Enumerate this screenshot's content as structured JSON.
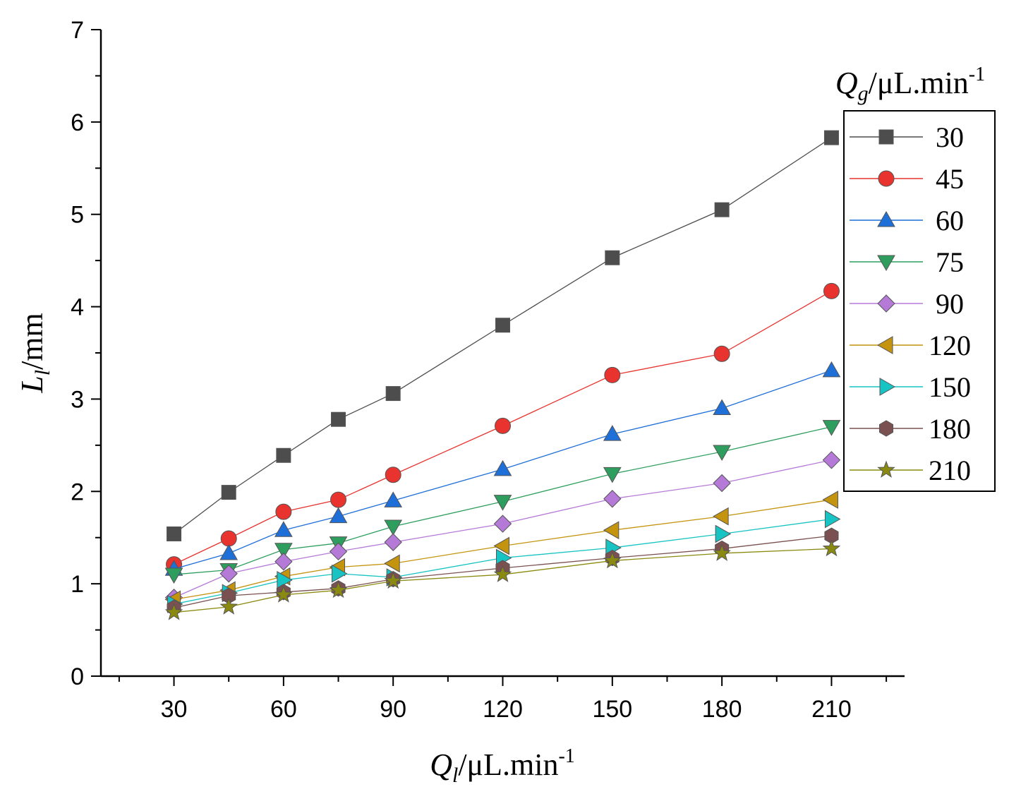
{
  "chart_data": {
    "type": "line",
    "title": "",
    "xlabel": {
      "main": "Q",
      "sub": "l",
      "unit": "/μL.min",
      "sup": "-1"
    },
    "ylabel": {
      "main": "L",
      "sub": "l",
      "unit": "/mm"
    },
    "xlim": [
      10,
      230
    ],
    "ylim": [
      0,
      7
    ],
    "xticks": [
      30,
      60,
      90,
      120,
      150,
      180,
      210
    ],
    "yticks": [
      0,
      1,
      2,
      3,
      4,
      5,
      6,
      7
    ],
    "x": [
      30,
      45,
      60,
      75,
      90,
      120,
      150,
      180,
      210
    ],
    "legend": {
      "title": {
        "main": "Q",
        "sub": "g",
        "unit": "/μL.min",
        "sup": "-1"
      },
      "position": "right"
    },
    "series": [
      {
        "name": "30",
        "color": "#4d4d4d",
        "marker": "square",
        "values": [
          1.54,
          1.99,
          2.39,
          2.78,
          3.06,
          3.8,
          4.53,
          5.05,
          5.83
        ]
      },
      {
        "name": "45",
        "color": "#e8332e",
        "marker": "circle",
        "values": [
          1.21,
          1.49,
          1.78,
          1.91,
          2.18,
          2.71,
          3.26,
          3.49,
          4.17
        ]
      },
      {
        "name": "60",
        "color": "#1f6fd8",
        "marker": "triangle-up",
        "values": [
          1.16,
          1.33,
          1.58,
          1.73,
          1.9,
          2.24,
          2.62,
          2.9,
          3.31
        ]
      },
      {
        "name": "75",
        "color": "#2e9e5e",
        "marker": "triangle-down",
        "values": [
          1.1,
          1.15,
          1.37,
          1.44,
          1.62,
          1.89,
          2.19,
          2.43,
          2.7
        ]
      },
      {
        "name": "90",
        "color": "#b57ad8",
        "marker": "diamond",
        "values": [
          0.85,
          1.11,
          1.24,
          1.35,
          1.45,
          1.65,
          1.92,
          2.09,
          2.34
        ]
      },
      {
        "name": "120",
        "color": "#c4940e",
        "marker": "triangle-left",
        "values": [
          0.83,
          0.93,
          1.08,
          1.18,
          1.22,
          1.41,
          1.58,
          1.73,
          1.91
        ]
      },
      {
        "name": "150",
        "color": "#17c3c3",
        "marker": "triangle-right",
        "values": [
          0.78,
          0.9,
          1.04,
          1.11,
          1.07,
          1.28,
          1.39,
          1.54,
          1.7
        ]
      },
      {
        "name": "180",
        "color": "#7a5150",
        "marker": "hexagon",
        "values": [
          0.74,
          0.87,
          0.91,
          0.95,
          1.05,
          1.17,
          1.28,
          1.38,
          1.52
        ]
      },
      {
        "name": "210",
        "color": "#8a8a10",
        "marker": "star",
        "values": [
          0.69,
          0.75,
          0.88,
          0.93,
          1.03,
          1.1,
          1.25,
          1.33,
          1.38
        ]
      }
    ]
  }
}
